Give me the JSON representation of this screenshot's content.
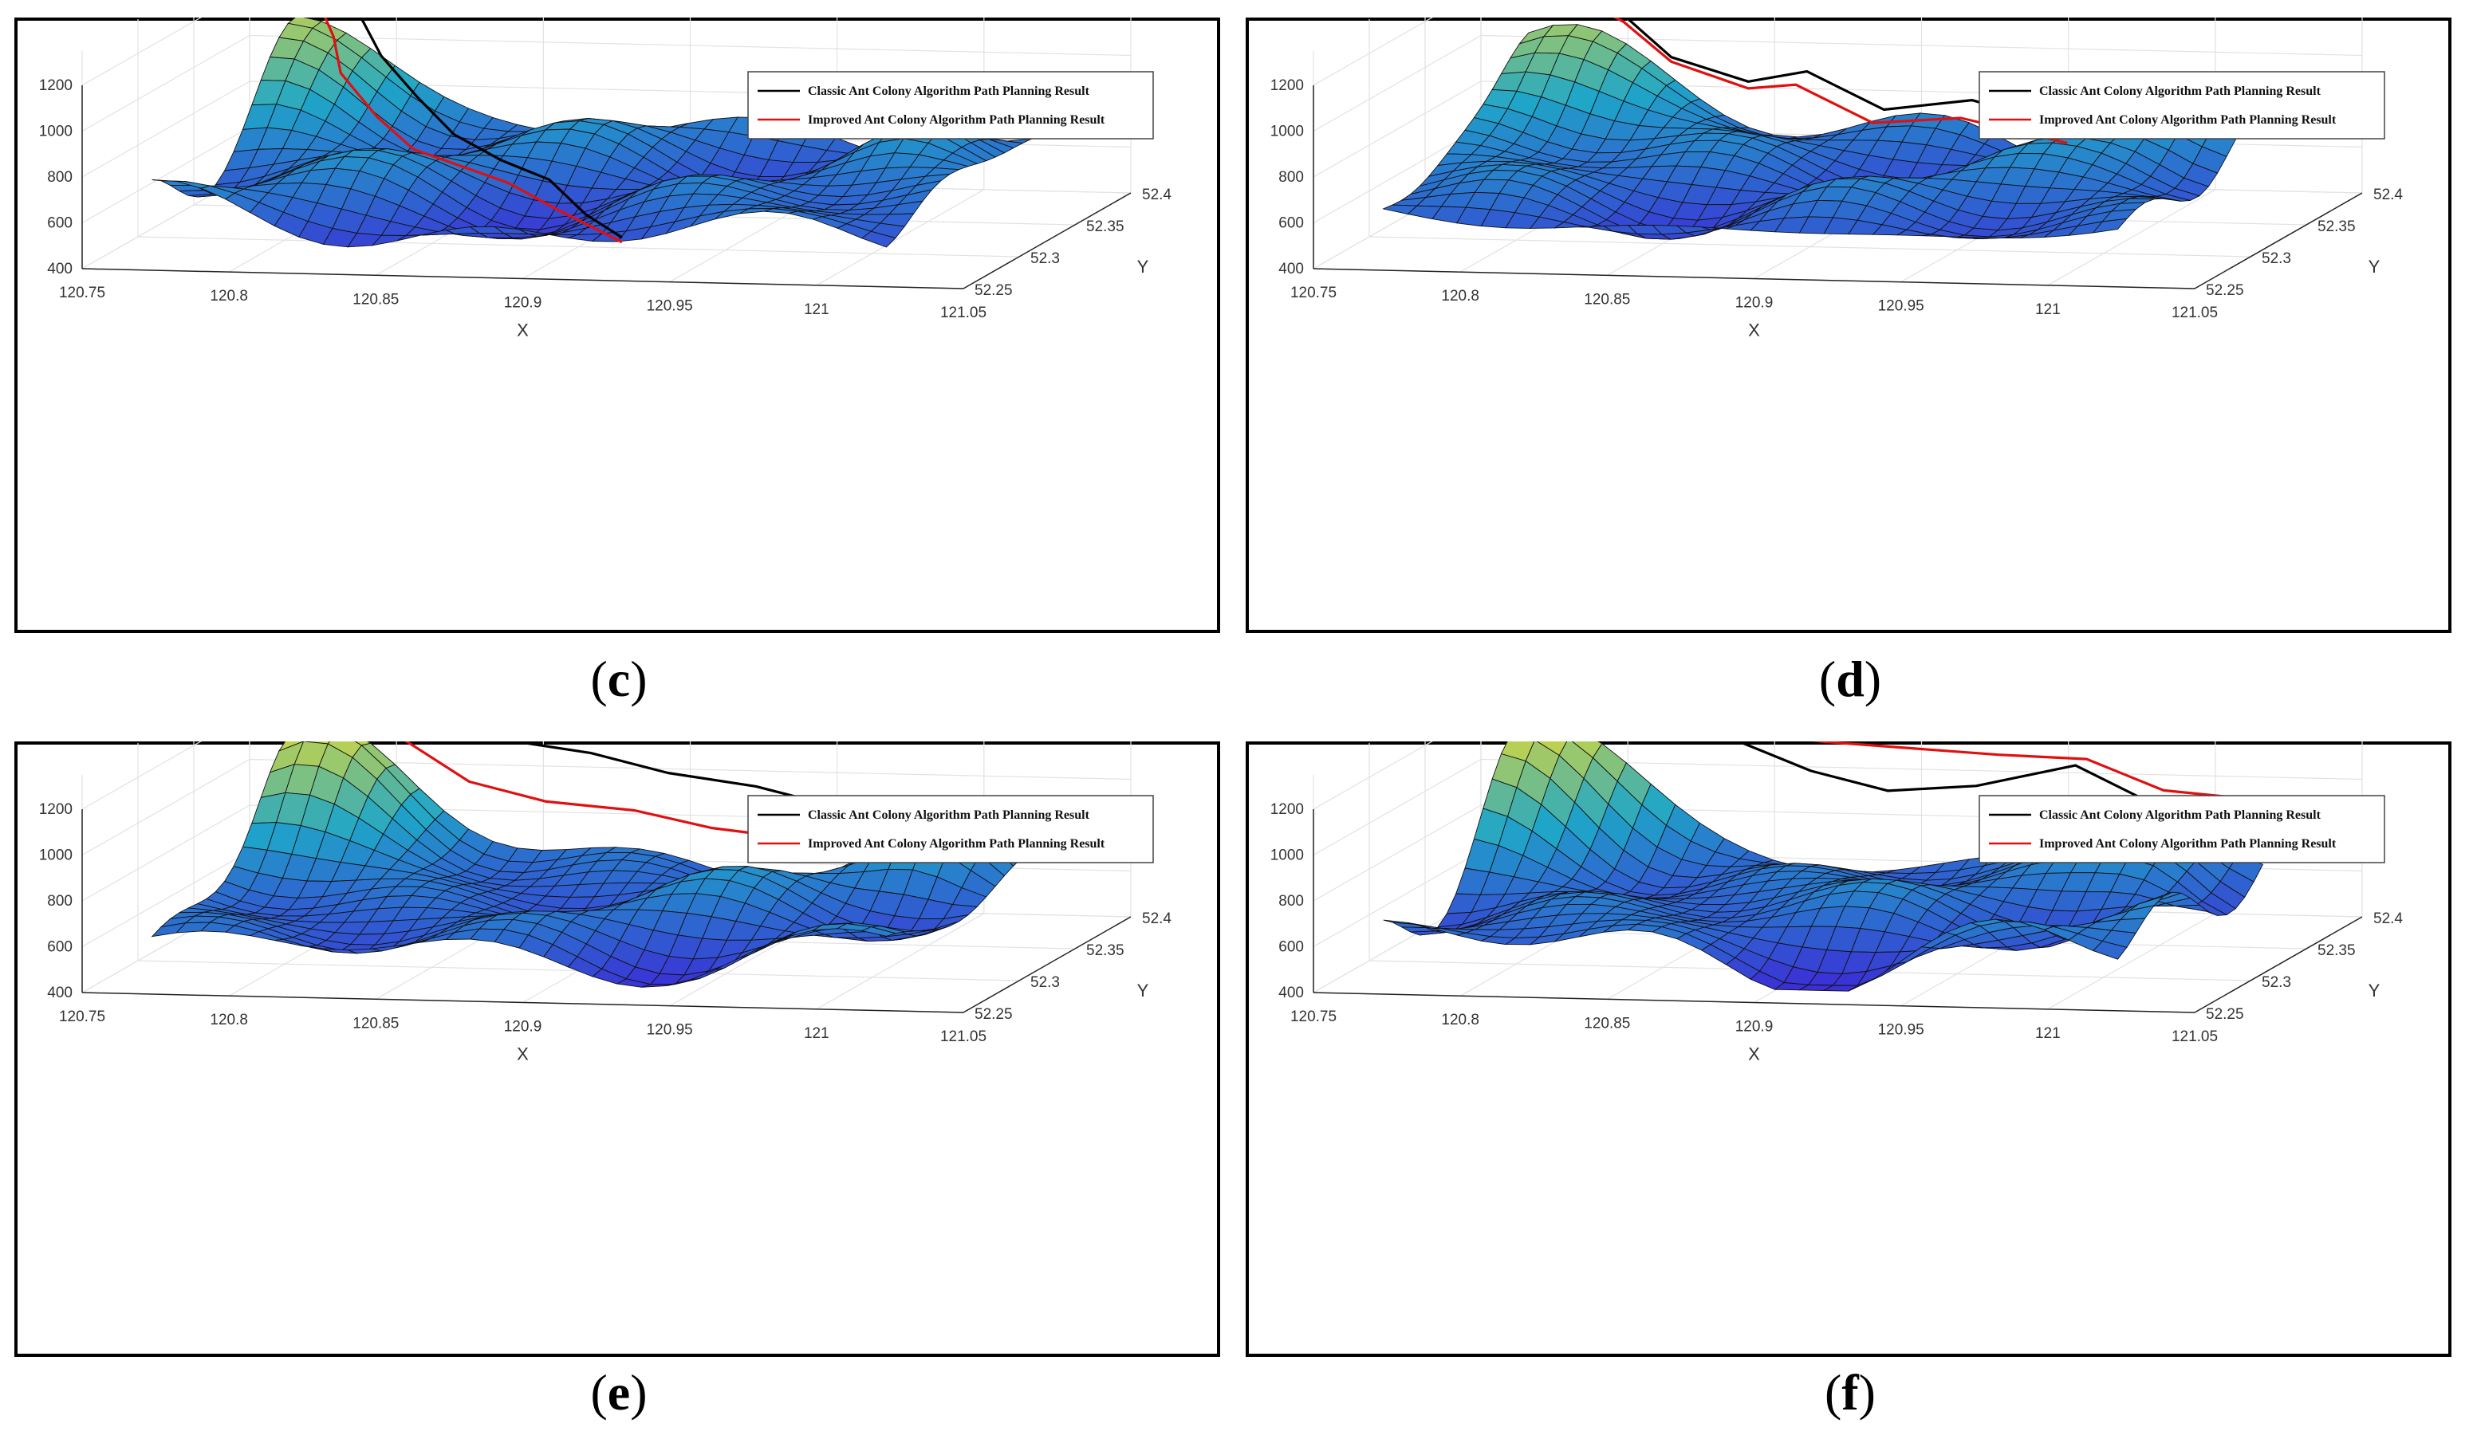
{
  "figure": {
    "panels": [
      {
        "id": "c",
        "caption": "c",
        "legend": {
          "classic": "Classic Ant Colony Algorithm Path Planning Result",
          "improved": "Improved Ant Colony Algorithm Path Planning Result"
        },
        "x_ticks": [
          "120.75",
          "120.8",
          "120.85",
          "120.9",
          "120.95",
          "121",
          "121.05"
        ],
        "y_ticks": [
          "52.25",
          "52.3",
          "52.35",
          "52.4"
        ],
        "z_ticks": [
          "400",
          "600",
          "800",
          "1000",
          "1200"
        ],
        "x_label": "X",
        "y_label": "Y"
      },
      {
        "id": "d",
        "caption": "d",
        "legend": {
          "classic": "Classic Ant Colony Algorithm Path Planning Result",
          "improved": "Improved Ant Colony Algorithm Path Planning Result"
        },
        "x_ticks": [
          "120.75",
          "120.8",
          "120.85",
          "120.9",
          "120.95",
          "121",
          "121.05"
        ],
        "y_ticks": [
          "52.25",
          "52.3",
          "52.35",
          "52.4"
        ],
        "z_ticks": [
          "400",
          "600",
          "800",
          "1000",
          "1200"
        ],
        "x_label": "X",
        "y_label": "Y"
      },
      {
        "id": "e",
        "caption": "e",
        "legend": {
          "classic": "Classic Ant Colony Algorithm Path Planning Result",
          "improved": "Improved Ant Colony Algorithm Path Planning Result"
        },
        "x_ticks": [
          "120.75",
          "120.8",
          "120.85",
          "120.9",
          "120.95",
          "121",
          "121.05"
        ],
        "y_ticks": [
          "52.25",
          "52.3",
          "52.35",
          "52.4"
        ],
        "z_ticks": [
          "400",
          "600",
          "800",
          "1000",
          "1200"
        ],
        "x_label": "X",
        "y_label": "Y"
      },
      {
        "id": "f",
        "caption": "f",
        "legend": {
          "classic": "Classic Ant Colony Algorithm Path Planning Result",
          "improved": "Improved Ant Colony Algorithm Path Planning Result"
        },
        "x_ticks": [
          "120.75",
          "120.8",
          "120.85",
          "120.9",
          "120.95",
          "121",
          "121.05"
        ],
        "y_ticks": [
          "52.25",
          "52.3",
          "52.35",
          "52.4"
        ],
        "z_ticks": [
          "400",
          "600",
          "800",
          "1000",
          "1200"
        ],
        "x_label": "X",
        "y_label": "Y"
      }
    ]
  },
  "colors": {
    "classic": "#000000",
    "improved": "#e01010",
    "surface_low": "#3b2fd6",
    "surface_mid": "#1fa6c8",
    "surface_high": "#f2e02a"
  },
  "chart_data": [
    {
      "type": "surface3d",
      "title": "(c)",
      "xlabel": "X",
      "ylabel": "Y",
      "zlabel": "",
      "xlim": [
        120.75,
        121.05
      ],
      "ylim": [
        52.25,
        52.4
      ],
      "zlim": [
        400,
        1200
      ],
      "legend": [
        "Classic Ant Colony Algorithm Path Planning Result",
        "Improved Ant Colony Algorithm Path Planning Result"
      ],
      "series": [
        {
          "name": "Classic Ant Colony Algorithm Path Planning Result",
          "x": [
            120.79,
            120.8,
            120.81,
            120.83,
            120.85,
            120.87,
            120.89,
            120.91,
            120.93
          ],
          "y": [
            52.38,
            52.37,
            52.36,
            52.34,
            52.32,
            52.31,
            52.3,
            52.28,
            52.26
          ],
          "z": [
            1200,
            1120,
            1000,
            880,
            780,
            700,
            650,
            560,
            520
          ]
        },
        {
          "name": "Improved Ant Colony Algorithm Path Planning Result",
          "x": [
            120.78,
            120.79,
            120.8,
            120.82,
            120.84,
            120.86,
            120.88,
            120.9,
            120.93
          ],
          "y": [
            52.38,
            52.37,
            52.35,
            52.33,
            52.31,
            52.3,
            52.29,
            52.28,
            52.26
          ],
          "z": [
            1200,
            1050,
            950,
            820,
            740,
            700,
            660,
            580,
            500
          ]
        }
      ]
    },
    {
      "type": "surface3d",
      "title": "(d)",
      "xlabel": "X",
      "ylabel": "Y",
      "zlabel": "",
      "xlim": [
        120.75,
        121.05
      ],
      "ylim": [
        52.25,
        52.4
      ],
      "zlim": [
        400,
        1200
      ],
      "legend": [
        "Classic Ant Colony Algorithm Path Planning Result",
        "Improved Ant Colony Algorithm Path Planning Result"
      ],
      "series": [
        {
          "name": "Classic Ant Colony Algorithm Path Planning Result",
          "x": [
            120.79,
            120.81,
            120.83,
            120.86,
            120.88,
            120.91,
            120.94,
            120.97
          ],
          "y": [
            52.38,
            52.37,
            52.36,
            52.35,
            52.35,
            52.34,
            52.34,
            52.33
          ],
          "z": [
            1200,
            1150,
            1000,
            930,
            980,
            850,
            900,
            840
          ]
        },
        {
          "name": "Improved Ant Colony Algorithm Path Planning Result",
          "x": [
            120.79,
            120.81,
            120.83,
            120.86,
            120.88,
            120.91,
            120.94,
            120.98
          ],
          "y": [
            52.38,
            52.37,
            52.36,
            52.35,
            52.34,
            52.33,
            52.33,
            52.32
          ],
          "z": [
            1200,
            1120,
            980,
            900,
            950,
            820,
            850,
            780
          ]
        }
      ]
    },
    {
      "type": "surface3d",
      "title": "(e)",
      "xlabel": "X",
      "ylabel": "Y",
      "zlabel": "",
      "xlim": [
        120.75,
        121.05
      ],
      "ylim": [
        52.25,
        52.4
      ],
      "zlim": [
        400,
        1200
      ],
      "legend": [
        "Classic Ant Colony Algorithm Path Planning Result",
        "Improved Ant Colony Algorithm Path Planning Result"
      ],
      "series": [
        {
          "name": "Classic Ant Colony Algorithm Path Planning Result",
          "x": [
            120.78,
            120.81,
            120.84,
            120.87,
            120.9,
            120.93,
            120.96,
            120.99
          ],
          "y": [
            52.38,
            52.39,
            52.39,
            52.39,
            52.38,
            52.38,
            52.37,
            52.36
          ],
          "z": [
            1200,
            1150,
            1100,
            1050,
            1000,
            950,
            900,
            850
          ]
        },
        {
          "name": "Improved Ant Colony Algorithm Path Planning Result",
          "x": [
            120.78,
            120.81,
            120.84,
            120.87,
            120.9,
            120.93,
            120.96,
            120.99
          ],
          "y": [
            52.38,
            52.38,
            52.36,
            52.35,
            52.35,
            52.34,
            52.34,
            52.33
          ],
          "z": [
            1200,
            1120,
            1000,
            950,
            920,
            880,
            840,
            800
          ]
        }
      ]
    },
    {
      "type": "surface3d",
      "title": "(f)",
      "xlabel": "X",
      "ylabel": "Y",
      "zlabel": "",
      "xlim": [
        120.75,
        121.05
      ],
      "ylim": [
        52.25,
        52.4
      ],
      "zlim": [
        400,
        1200
      ],
      "legend": [
        "Classic Ant Colony Algorithm Path Planning Result",
        "Improved Ant Colony Algorithm Path Planning Result"
      ],
      "series": [
        {
          "name": "Classic Ant Colony Algorithm Path Planning Result",
          "x": [
            120.78,
            120.81,
            120.84,
            120.87,
            120.9,
            120.93,
            120.96,
            120.99,
            121.02
          ],
          "y": [
            52.38,
            52.39,
            52.39,
            52.38,
            52.37,
            52.37,
            52.38,
            52.37,
            52.37
          ],
          "z": [
            1200,
            1150,
            1100,
            1000,
            950,
            980,
            1050,
            920,
            900
          ]
        },
        {
          "name": "Improved Ant Colony Algorithm Path Planning Result",
          "x": [
            120.78,
            120.81,
            120.84,
            120.87,
            120.9,
            120.93,
            120.96,
            120.99,
            121.02
          ],
          "y": [
            52.38,
            52.39,
            52.39,
            52.39,
            52.39,
            52.39,
            52.39,
            52.38,
            52.38
          ],
          "z": [
            1200,
            1180,
            1150,
            1100,
            1080,
            1060,
            1050,
            950,
            920
          ]
        }
      ]
    }
  ]
}
